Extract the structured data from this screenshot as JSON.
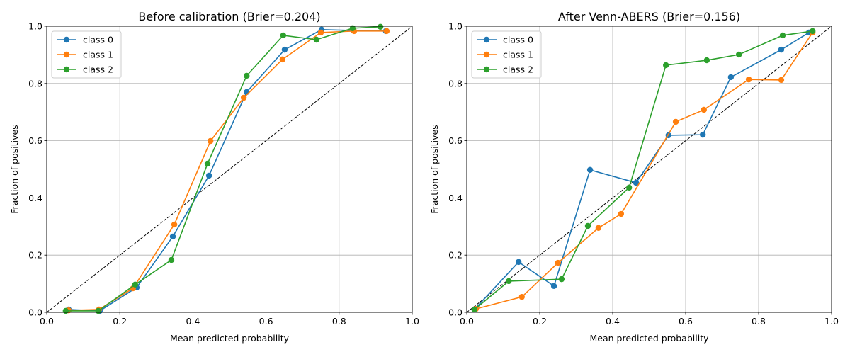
{
  "chart_data": [
    {
      "type": "line",
      "title": "Before calibration (Brier=0.204)",
      "xlabel": "Mean predicted probability",
      "ylabel": "Fraction of positives",
      "xlim": [
        0,
        1
      ],
      "ylim": [
        0,
        1
      ],
      "xticks": [
        "0.0",
        "0.2",
        "0.4",
        "0.6",
        "0.8",
        "1.0"
      ],
      "yticks": [
        "0.0",
        "0.2",
        "0.4",
        "0.6",
        "0.8",
        "1.0"
      ],
      "grid": true,
      "legend": "upper-left",
      "reference_line": "y=x dashed",
      "series": [
        {
          "name": "class 0",
          "color": "#1f77b4",
          "x": [
            0.06,
            0.145,
            0.246,
            0.345,
            0.444,
            0.547,
            0.651,
            0.752,
            0.839,
            0.928
          ],
          "y": [
            0.01,
            0.005,
            0.087,
            0.265,
            0.478,
            0.77,
            0.918,
            0.988,
            0.985,
            0.983
          ]
        },
        {
          "name": "class 1",
          "color": "#ff7f0e",
          "x": [
            0.06,
            0.143,
            0.236,
            0.349,
            0.448,
            0.539,
            0.645,
            0.75,
            0.841,
            0.93
          ],
          "y": [
            0.007,
            0.01,
            0.084,
            0.307,
            0.599,
            0.75,
            0.884,
            0.978,
            0.983,
            0.983
          ]
        },
        {
          "name": "class 2",
          "color": "#2ca02c",
          "x": [
            0.052,
            0.141,
            0.242,
            0.341,
            0.44,
            0.547,
            0.647,
            0.738,
            0.837,
            0.913
          ],
          "y": [
            0.005,
            0.005,
            0.097,
            0.183,
            0.52,
            0.827,
            0.968,
            0.953,
            0.993,
            0.998
          ]
        }
      ]
    },
    {
      "type": "line",
      "title": "After Venn-ABERS (Brier=0.156)",
      "xlabel": "Mean predicted probability",
      "ylabel": "Fraction of positives",
      "xlim": [
        0,
        1
      ],
      "ylim": [
        0,
        1
      ],
      "xticks": [
        "0.0",
        "0.2",
        "0.4",
        "0.6",
        "0.8",
        "1.0"
      ],
      "yticks": [
        "0.0",
        "0.2",
        "0.4",
        "0.6",
        "0.8",
        "1.0"
      ],
      "grid": true,
      "legend": "upper-left",
      "reference_line": "y=x dashed",
      "series": [
        {
          "name": "class 0",
          "color": "#1f77b4",
          "x": [
            0.021,
            0.142,
            0.239,
            0.338,
            0.464,
            0.553,
            0.647,
            0.724,
            0.862,
            0.938
          ],
          "y": [
            0.01,
            0.176,
            0.092,
            0.498,
            0.453,
            0.619,
            0.621,
            0.822,
            0.918,
            0.978
          ]
        },
        {
          "name": "class 1",
          "color": "#ff7f0e",
          "x": [
            0.025,
            0.151,
            0.25,
            0.361,
            0.423,
            0.573,
            0.65,
            0.773,
            0.862,
            0.948
          ],
          "y": [
            0.012,
            0.054,
            0.173,
            0.295,
            0.344,
            0.666,
            0.708,
            0.814,
            0.812,
            0.978
          ]
        },
        {
          "name": "class 2",
          "color": "#2ca02c",
          "x": [
            0.021,
            0.115,
            0.26,
            0.332,
            0.445,
            0.546,
            0.658,
            0.746,
            0.866,
            0.948
          ],
          "y": [
            0.01,
            0.109,
            0.116,
            0.302,
            0.436,
            0.864,
            0.881,
            0.901,
            0.968,
            0.983
          ]
        }
      ]
    }
  ]
}
